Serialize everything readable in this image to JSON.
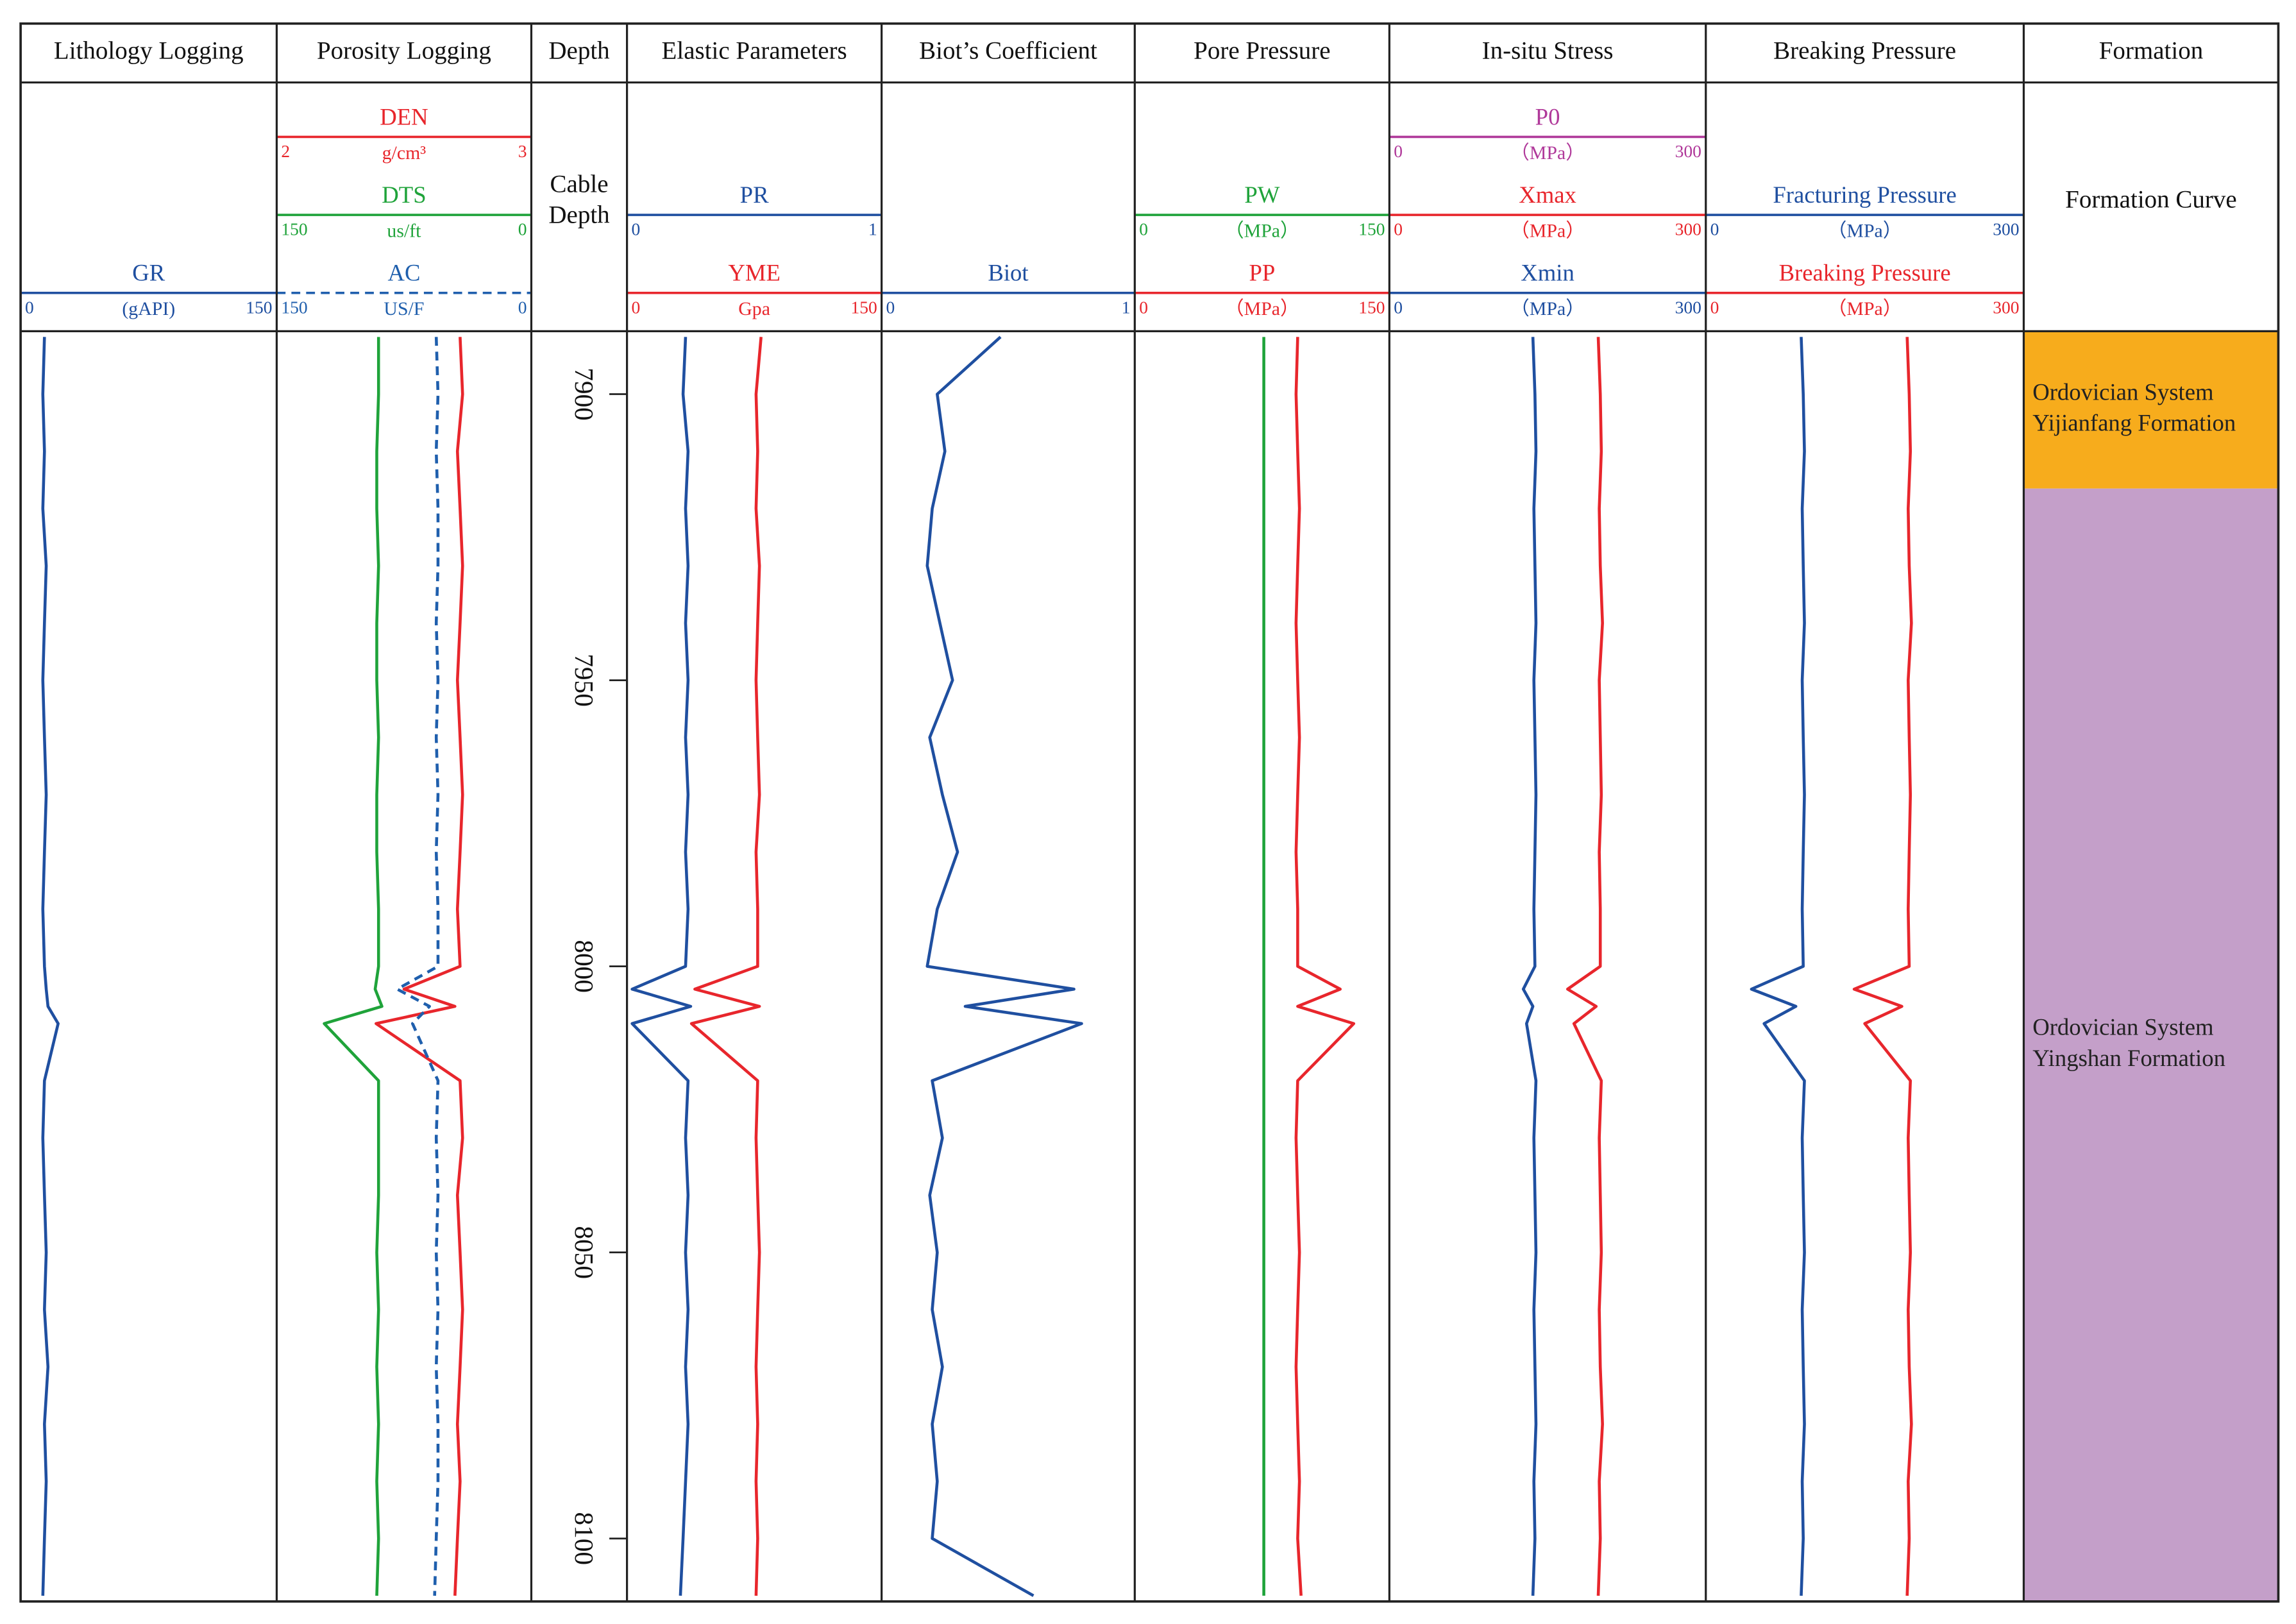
{
  "chart_data": {
    "type": "well-log",
    "ylim": [
      7889,
      8111
    ],
    "depth": [
      7890,
      7900,
      7910,
      7920,
      7930,
      7940,
      7950,
      7960,
      7970,
      7980,
      7990,
      8000,
      8004,
      8007,
      8010,
      8020,
      8030,
      8040,
      8050,
      8060,
      8070,
      8080,
      8090,
      8100,
      8110
    ],
    "tracks": [
      {
        "title": "Lithology Logging",
        "curves": [
          {
            "name": "GR",
            "unit": "(gAPI)",
            "color": "#1f4fa0",
            "xlim": [
              0,
              150
            ],
            "values": [
              14,
              13,
              14,
              13,
              15,
              14,
              13,
              14,
              15,
              14,
              13,
              14,
              15,
              16,
              22,
              14,
              13,
              14,
              15,
              14,
              16,
              14,
              15,
              14,
              13
            ]
          }
        ]
      },
      {
        "title": "Porosity Logging",
        "curves": [
          {
            "name": "DEN",
            "unit": "g/cm³",
            "color": "#e8262c",
            "xlim": [
              2,
              3
            ],
            "values": [
              2.72,
              2.73,
              2.71,
              2.72,
              2.73,
              2.72,
              2.71,
              2.72,
              2.73,
              2.72,
              2.71,
              2.72,
              2.5,
              2.7,
              2.39,
              2.72,
              2.73,
              2.71,
              2.72,
              2.73,
              2.72,
              2.71,
              2.72,
              2.71,
              2.7
            ]
          },
          {
            "name": "DTS",
            "unit": "us/ft",
            "color": "#1fa33a",
            "xlim": [
              150,
              0
            ],
            "values": [
              90,
              90,
              91,
              91,
              90,
              91,
              91,
              90,
              91,
              91,
              90,
              90,
              92,
              88,
              122,
              90,
              90,
              90,
              91,
              90,
              91,
              90,
              91,
              90,
              91
            ]
          },
          {
            "name": "AC",
            "unit": "US/F",
            "color": "#1f5fad",
            "xlim": [
              150,
              0
            ],
            "dashed": true,
            "values": [
              56,
              55,
              56,
              55,
              55,
              56,
              55,
              56,
              55,
              56,
              55,
              55,
              79,
              60,
              70,
              55,
              56,
              55,
              56,
              55,
              56,
              55,
              55,
              56,
              57
            ]
          }
        ]
      },
      {
        "title": "Depth",
        "header": [
          "Cable",
          "Depth"
        ],
        "yticks": [
          7900,
          7950,
          8000,
          8050,
          8100
        ]
      },
      {
        "title": "Elastic Parameters",
        "curves": [
          {
            "name": "PR",
            "color": "#1f4fa0",
            "xlim": [
              0,
              1
            ],
            "values": [
              0.23,
              0.22,
              0.24,
              0.23,
              0.24,
              0.23,
              0.24,
              0.23,
              0.24,
              0.23,
              0.24,
              0.23,
              0.02,
              0.25,
              0.02,
              0.24,
              0.23,
              0.24,
              0.23,
              0.24,
              0.23,
              0.24,
              0.23,
              0.22,
              0.21
            ]
          },
          {
            "name": "YME",
            "unit": "Gpa",
            "color": "#e8262c",
            "xlim": [
              0,
              150
            ],
            "values": [
              79,
              76,
              77,
              76,
              78,
              77,
              76,
              77,
              78,
              76,
              77,
              77,
              40,
              78,
              38,
              77,
              76,
              77,
              78,
              77,
              76,
              77,
              76,
              77,
              76
            ]
          }
        ]
      },
      {
        "title": "Biot’s Coefficient",
        "curves": [
          {
            "name": "Biot",
            "color": "#1f4fa0",
            "xlim": [
              0,
              1
            ],
            "values": [
              0.47,
              0.22,
              0.25,
              0.2,
              0.18,
              0.23,
              0.28,
              0.19,
              0.24,
              0.3,
              0.22,
              0.18,
              0.76,
              0.33,
              0.79,
              0.2,
              0.24,
              0.19,
              0.22,
              0.2,
              0.24,
              0.2,
              0.22,
              0.2,
              0.6
            ]
          }
        ]
      },
      {
        "title": "Pore Pressure",
        "curves": [
          {
            "name": "PW",
            "unit": "（MPa）",
            "color": "#1fa33a",
            "xlim": [
              0,
              150
            ],
            "values": [
              76,
              76,
              76,
              76,
              76,
              76,
              76,
              76,
              76,
              76,
              76,
              76,
              76,
              76,
              76,
              76,
              76,
              76,
              76,
              76,
              76,
              76,
              76,
              76,
              76
            ]
          },
          {
            "name": "PP",
            "unit": "（MPa）",
            "color": "#e8262c",
            "xlim": [
              0,
              150
            ],
            "values": [
              96,
              95,
              96,
              97,
              96,
              95,
              96,
              97,
              96,
              95,
              96,
              96,
              121,
              96,
              129,
              96,
              95,
              96,
              97,
              96,
              95,
              96,
              97,
              96,
              98
            ]
          }
        ]
      },
      {
        "title": "In-situ Stress",
        "curves": [
          {
            "name": "P0",
            "unit": "（MPa）",
            "color": "#b0399a",
            "xlim": [
              0,
              300
            ]
          },
          {
            "name": "Xmax",
            "unit": "（MPa）",
            "color": "#e8262c",
            "xlim": [
              0,
              300
            ],
            "values": [
              198,
              200,
              201,
              199,
              200,
              202,
              199,
              200,
              201,
              199,
              200,
              200,
              169,
              196,
              175,
              201,
              199,
              200,
              201,
              199,
              200,
              202,
              199,
              200,
              198
            ]
          },
          {
            "name": "Xmin",
            "unit": "（MPa）",
            "color": "#1f4fa0",
            "xlim": [
              0,
              300
            ],
            "values": [
              136,
              138,
              139,
              137,
              138,
              139,
              137,
              138,
              139,
              138,
              137,
              138,
              127,
              136,
              130,
              139,
              137,
              138,
              139,
              137,
              138,
              139,
              137,
              138,
              136
            ]
          }
        ]
      },
      {
        "title": "Breaking Pressure",
        "curves": [
          {
            "name": "Fracturing Pressure",
            "unit": "（MPa）",
            "color": "#1f4fa0",
            "xlim": [
              0,
              300
            ],
            "values": [
              90,
              92,
              93,
              91,
              92,
              93,
              91,
              92,
              93,
              92,
              91,
              92,
              43,
              85,
              55,
              93,
              91,
              92,
              93,
              91,
              92,
              93,
              91,
              92,
              90
            ]
          },
          {
            "name": "Breaking Pressure",
            "unit": "（MPa）",
            "color": "#e8262c",
            "xlim": [
              0,
              300
            ],
            "values": [
              190,
              192,
              193,
              191,
              192,
              194,
              191,
              192,
              193,
              192,
              191,
              192,
              140,
              185,
              150,
              193,
              191,
              192,
              193,
              191,
              192,
              194,
              191,
              192,
              190
            ]
          }
        ]
      },
      {
        "title": "Formation",
        "header": [
          "Formation Curve"
        ],
        "formations": [
          {
            "name": [
              "Ordovician System",
              "Yijianfang Formation"
            ],
            "top": 7889,
            "bottom": 7916.5,
            "color": "#f7ac1c"
          },
          {
            "name": [
              "Ordovician System",
              "Yingshan Formation"
            ],
            "top": 7916.5,
            "bottom": 8111,
            "color": "#c49fc9"
          }
        ]
      }
    ]
  }
}
